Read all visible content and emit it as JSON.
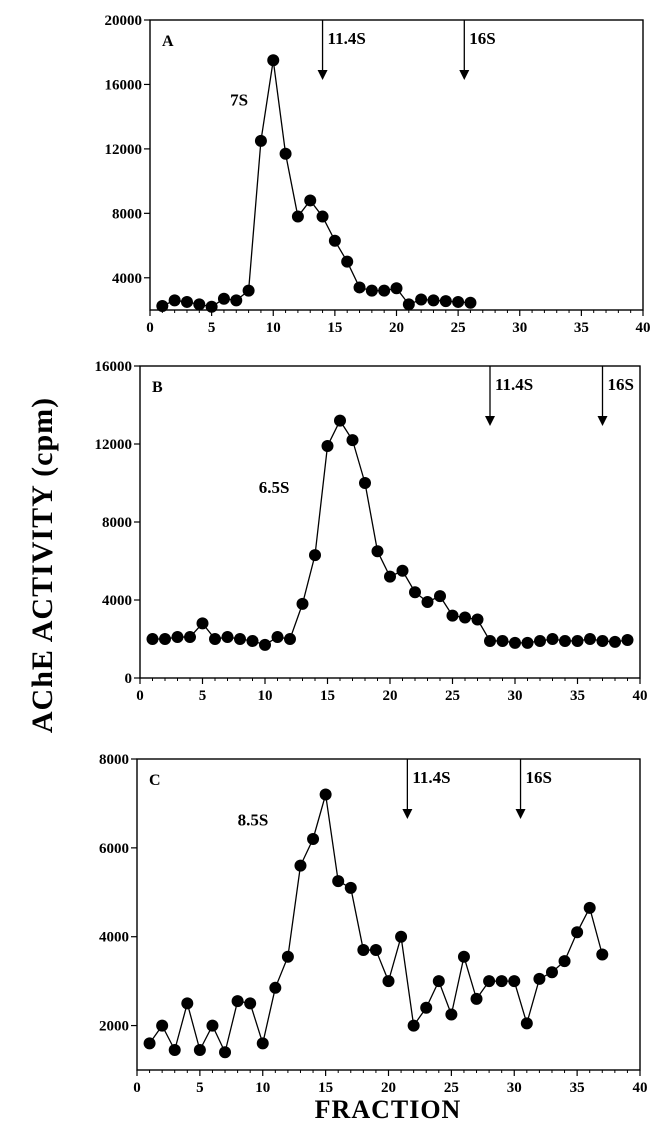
{
  "figure": {
    "ylabel": "AChE  ACTIVITY  (cpm)",
    "xlabel": "FRACTION"
  },
  "chart_data": [
    {
      "type": "line",
      "panel": "A",
      "xlim": [
        0,
        40
      ],
      "ylim": [
        2000,
        20000
      ],
      "yticks": [
        4000,
        8000,
        12000,
        16000,
        20000
      ],
      "xticks": [
        0,
        5,
        10,
        15,
        20,
        25,
        30,
        35,
        40
      ],
      "peak_label": "7S",
      "peak_label_at": [
        6.5,
        14700
      ],
      "markers": [
        {
          "label": "11.4S",
          "x": 14
        },
        {
          "label": "16S",
          "x": 25.5
        }
      ],
      "series": [
        {
          "x": [
            1,
            2,
            3,
            4,
            5,
            6,
            7,
            8,
            9,
            10,
            11,
            12,
            13,
            14,
            15,
            16,
            17,
            18,
            19,
            20,
            21,
            22,
            23,
            24,
            25,
            26
          ],
          "y": [
            2250,
            2600,
            2500,
            2350,
            2200,
            2700,
            2600,
            3200,
            12500,
            17500,
            11700,
            7800,
            8800,
            7800,
            6300,
            5000,
            3400,
            3200,
            3200,
            3350,
            2350,
            2650,
            2600,
            2550,
            2500,
            2450
          ]
        }
      ]
    },
    {
      "type": "line",
      "panel": "B",
      "xlim": [
        0,
        40
      ],
      "ylim": [
        0,
        16000
      ],
      "yticks": [
        0,
        4000,
        8000,
        12000,
        16000
      ],
      "xticks": [
        0,
        5,
        10,
        15,
        20,
        25,
        30,
        35,
        40
      ],
      "peak_label": "6.5S",
      "peak_label_at": [
        9.5,
        9500
      ],
      "markers": [
        {
          "label": "11.4S",
          "x": 28
        },
        {
          "label": "16S",
          "x": 37
        }
      ],
      "series": [
        {
          "x": [
            1,
            2,
            3,
            4,
            5,
            6,
            7,
            8,
            9,
            10,
            11,
            12,
            13,
            14,
            15,
            16,
            17,
            18,
            19,
            20,
            21,
            22,
            23,
            24,
            25,
            26,
            27,
            28,
            29,
            30,
            31,
            32,
            33,
            34,
            35,
            36,
            37,
            38,
            39
          ],
          "y": [
            2000,
            2000,
            2100,
            2100,
            2800,
            2000,
            2100,
            2000,
            1900,
            1700,
            2100,
            2000,
            3800,
            6300,
            11900,
            13200,
            12200,
            10000,
            6500,
            5200,
            5500,
            4400,
            3900,
            4200,
            3200,
            3100,
            3000,
            1900,
            1900,
            1800,
            1800,
            1900,
            2000,
            1900,
            1900,
            2000,
            1900,
            1850,
            1950
          ]
        }
      ]
    },
    {
      "type": "line",
      "panel": "C",
      "xlim": [
        0,
        40
      ],
      "ylim": [
        1000,
        8000
      ],
      "yticks": [
        2000,
        4000,
        6000,
        8000
      ],
      "xticks": [
        0,
        5,
        10,
        15,
        20,
        25,
        30,
        35,
        40
      ],
      "peak_label": "8.5S",
      "peak_label_at": [
        8.0,
        6500
      ],
      "markers": [
        {
          "label": "11.4S",
          "x": 21.5
        },
        {
          "label": "16S",
          "x": 30.5
        }
      ],
      "series": [
        {
          "x": [
            1,
            2,
            3,
            4,
            5,
            6,
            7,
            8,
            9,
            10,
            11,
            12,
            13,
            14,
            15,
            16,
            17,
            18,
            19,
            20,
            21,
            22,
            23,
            24,
            25,
            26,
            27,
            28,
            29,
            30,
            31,
            32,
            33,
            34,
            35,
            36,
            37
          ],
          "y": [
            1600,
            2000,
            1450,
            2500,
            1450,
            2000,
            1400,
            2550,
            2500,
            1600,
            2850,
            3550,
            5600,
            6200,
            7200,
            5250,
            5100,
            3700,
            3700,
            3000,
            4000,
            2000,
            2400,
            3000,
            2250,
            3550,
            2600,
            3000,
            3000,
            3000,
            2050,
            3050,
            3200,
            3450,
            4100,
            4650,
            3600
          ]
        }
      ]
    }
  ]
}
